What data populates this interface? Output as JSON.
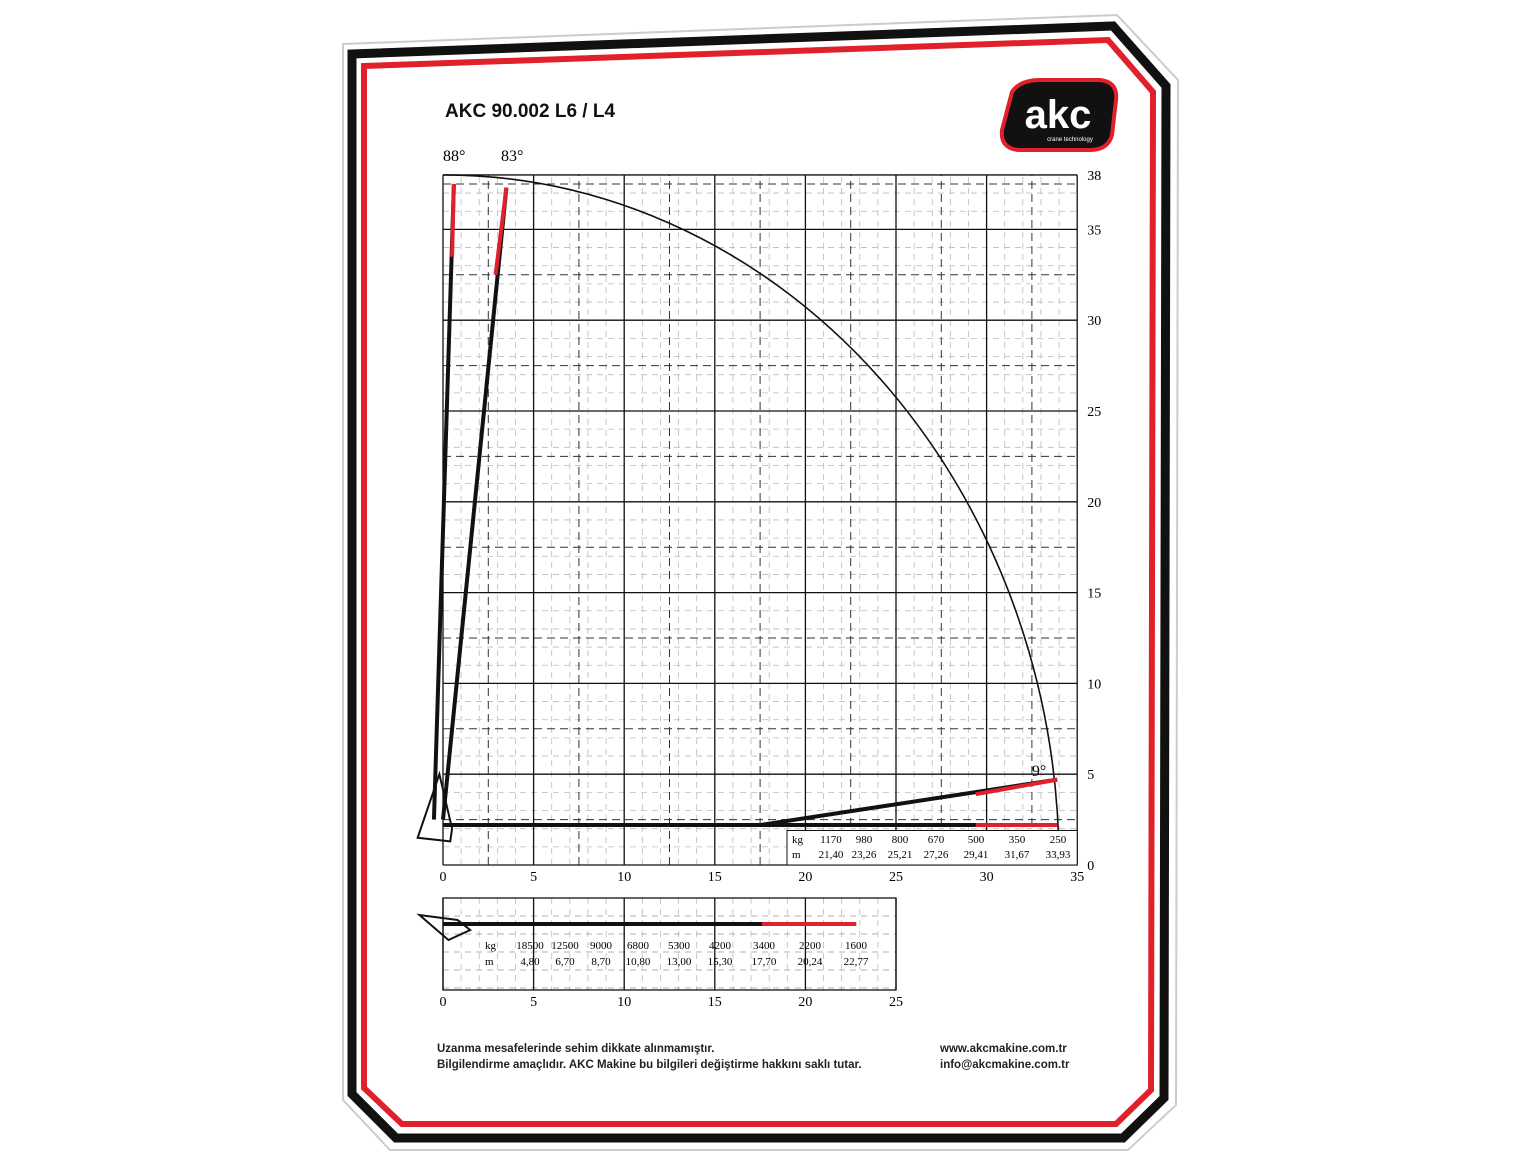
{
  "header": {
    "title": "AKC 90.002 L6 / L4",
    "logo": "akc",
    "logo_tagline": "crane technology"
  },
  "main_diagram": {
    "angles": [
      "88°",
      "83°",
      "9°"
    ],
    "x_ticks": [
      0,
      5,
      10,
      15,
      20,
      25,
      30,
      35
    ],
    "y_ticks": [
      0,
      5,
      10,
      15,
      20,
      25,
      30,
      35,
      38
    ],
    "load_table": {
      "kg_label": "kg",
      "m_label": "m",
      "kg": [
        1170,
        980,
        800,
        670,
        500,
        350,
        250
      ],
      "m": [
        "21,40",
        "23,26",
        "25,21",
        "27,26",
        "29,41",
        "31,67",
        "33,93"
      ]
    }
  },
  "outreach_diagram": {
    "x_ticks": [
      0,
      5,
      10,
      15,
      20,
      25
    ],
    "load_table": {
      "kg_label": "kg",
      "m_label": "m",
      "kg": [
        18500,
        12500,
        9000,
        6800,
        5300,
        4200,
        3400,
        2200,
        1600
      ],
      "m": [
        "4,80",
        "6,70",
        "8,70",
        "10,80",
        "13,00",
        "15,30",
        "17,70",
        "20,24",
        "22,77"
      ]
    }
  },
  "footer": {
    "notes": [
      "Uzanma mesafelerinde sehim dikkate alınmamıştır.",
      "Bilgilendirme amaçlıdır. AKC Makine bu bilgileri değiştirme hakkını saklı tutar."
    ],
    "contacts": [
      "www.akcmakine.com.tr",
      "info@akcmakine.com.tr"
    ]
  }
}
